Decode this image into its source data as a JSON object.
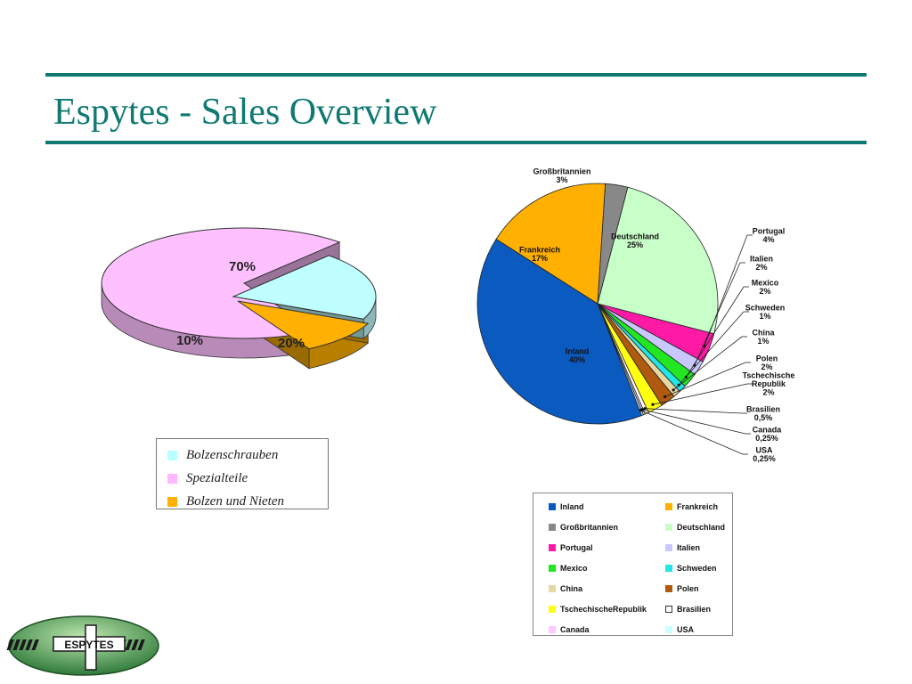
{
  "slide": {
    "title": "Espytes - Sales Overview"
  },
  "logo": {
    "text": "ESPYTES"
  },
  "chart_data": [
    {
      "type": "pie",
      "style": "3d-exploded",
      "categories": [
        "Spezialteile",
        "Bolzenschrauben",
        "Bolzen und Nieten"
      ],
      "values": [
        70,
        20,
        10
      ],
      "data_labels": [
        "70%",
        "20%",
        "10%"
      ],
      "colors": [
        "#ffc0ff",
        "#c0ffff",
        "#ffb000"
      ],
      "legend": {
        "position": "below",
        "entries": [
          {
            "label": "Bolzenschrauben",
            "color": "#b8ffff"
          },
          {
            "label": "Spezialteile",
            "color": "#ffb8ff"
          },
          {
            "label": "Bolzen und Nieten",
            "color": "#ffb000"
          }
        ]
      }
    },
    {
      "type": "pie",
      "categories": [
        "Inland",
        "Frankreich",
        "Großbritannien",
        "Deutschland",
        "Portugal",
        "Italien",
        "Mexico",
        "Schweden",
        "China",
        "Polen",
        "Tschechische Republik",
        "Brasilien",
        "Canada",
        "USA"
      ],
      "values": [
        40,
        17,
        3,
        25,
        4,
        2,
        2,
        1,
        1,
        2,
        2,
        0.5,
        0.25,
        0.25
      ],
      "colors": [
        "#0a5abf",
        "#ffb000",
        "#888888",
        "#c8ffc8",
        "#ff1aa6",
        "#c8c8ff",
        "#22e622",
        "#22e6e6",
        "#e6d8a0",
        "#b05a10",
        "#ffff10",
        "#ffffff",
        "#ffc8ff",
        "#c8ffff"
      ],
      "slice_labels": [
        {
          "lines": [
            "Inland",
            "40%"
          ]
        },
        {
          "lines": [
            "Frankreich",
            "17%"
          ]
        },
        {
          "lines": [
            "Großbritannien",
            "3%"
          ]
        },
        {
          "lines": [
            "Deutschland",
            "25%"
          ]
        },
        {
          "lines": [
            "Portugal",
            "4%"
          ]
        },
        {
          "lines": [
            "Italien",
            "2%"
          ]
        },
        {
          "lines": [
            "Mexico",
            "2%"
          ]
        },
        {
          "lines": [
            "Schweden",
            "1%"
          ]
        },
        {
          "lines": [
            "China",
            "1%"
          ]
        },
        {
          "lines": [
            "Polen",
            "2%"
          ]
        },
        {
          "lines": [
            "Tschechische",
            "Republik",
            "2%"
          ]
        },
        {
          "lines": [
            "Brasilien",
            "0,5%"
          ]
        },
        {
          "lines": [
            "Canada",
            "0,25%"
          ]
        },
        {
          "lines": [
            "USA",
            "0,25%"
          ]
        }
      ],
      "legend": {
        "position": "below",
        "entries": [
          {
            "label": "Inland",
            "color": "#0a5abf"
          },
          {
            "label": "Frankreich",
            "color": "#ffb000"
          },
          {
            "label": "Großbritannien",
            "color": "#888888"
          },
          {
            "label": "Deutschland",
            "color": "#c8ffc8"
          },
          {
            "label": "Portugal",
            "color": "#ff1aa6"
          },
          {
            "label": "Italien",
            "color": "#c8c8ff"
          },
          {
            "label": "Mexico",
            "color": "#22e622"
          },
          {
            "label": "Schweden",
            "color": "#22e6e6"
          },
          {
            "label": "China",
            "color": "#e6d8a0"
          },
          {
            "label": "Polen",
            "color": "#b05a10"
          },
          {
            "label": "TschechischeRepublik",
            "color": "#ffff10"
          },
          {
            "label": "Brasilien",
            "color": "#ffffff"
          },
          {
            "label": "Canada",
            "color": "#ffc8ff"
          },
          {
            "label": "USA",
            "color": "#c8ffff"
          }
        ]
      }
    }
  ]
}
